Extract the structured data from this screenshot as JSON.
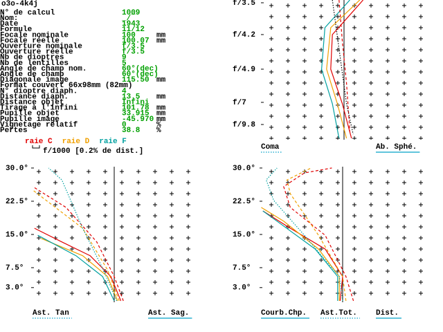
{
  "header": {
    "title": "o3o-4k4j"
  },
  "specs": [
    {
      "label": "N° de calcul",
      "value": "1009"
    },
    {
      "label": "Nom:",
      "value": "_/‾"
    },
    {
      "label": "Date",
      "value": "1943"
    },
    {
      "label": "Formule",
      "value": "11/12"
    },
    {
      "label": "Focale nominale",
      "value": "100",
      "unit": "mm"
    },
    {
      "label": "Focale réelle",
      "value": "100.07",
      "unit": "mm"
    },
    {
      "label": "Ouverture nominale",
      "value": "f/3.5"
    },
    {
      "label": "Ouverture réelle",
      "value": "f/3.5"
    },
    {
      "label": "Nb de dioptres",
      "value": "9"
    },
    {
      "label": "Nb de lentilles",
      "value": "5"
    },
    {
      "label": "Angle de champ nom.",
      "value": "60°(dec)"
    },
    {
      "label": "Angle de champ",
      "value": "60°(dec)"
    },
    {
      "label": "Diagonale image",
      "value": "115.50",
      "unit": "mm"
    },
    {
      "label": "Format couvert 66x98mm (82mm)"
    },
    {
      "label": "N° dioptre diaph.",
      "value": "4"
    },
    {
      "label": "Distance diaph.",
      "value": "13.5",
      "unit": "mm"
    },
    {
      "label": "Distance objet",
      "value": "Infini"
    },
    {
      "label": "Tirage à l'infini",
      "value": "101.78",
      "unit": "mm"
    },
    {
      "label": "Pupille objet",
      "value": "33.915",
      "unit": "mm"
    },
    {
      "label": "Pupille image",
      "value": "-45.970",
      "unit": "mm"
    },
    {
      "label": "Vignetage relatif",
      "value": "0",
      "unit": "%"
    },
    {
      "label": "Pertes",
      "value": "38.8",
      "unit": "%"
    }
  ],
  "legend": {
    "lines": [
      {
        "name": "raie C",
        "color": "#e00000"
      },
      {
        "name": "raie D",
        "color": "#f0a000"
      },
      {
        "name": "raie F",
        "color": "#00a0a0"
      }
    ],
    "scale_note": "f/1000 [0.2% de dist.]"
  },
  "panels": [
    {
      "type": "line",
      "labels": [
        {
          "text": "Coma",
          "underline": "dotted"
        },
        {
          "text": "Ab. Sphé.",
          "underline": "solid"
        }
      ],
      "xlim": [
        -1,
        1
      ],
      "ylim": [
        0,
        1
      ],
      "yticks": [
        {
          "value": 0.98,
          "label": "f/3.5"
        },
        {
          "value": 0.75,
          "label": "f/4.2"
        },
        {
          "value": 0.5,
          "label": "f/4.9"
        },
        {
          "value": 0.26,
          "label": "f/7"
        },
        {
          "value": 0.1,
          "label": "f/9.8"
        }
      ],
      "series": [
        {
          "color": "#e00000",
          "style": "solid",
          "x": [
            0.23,
            -0.14,
            -0.16,
            -0.02,
            0.09
          ],
          "y": [
            1,
            0.75,
            0.5,
            0.25,
            0
          ]
        },
        {
          "color": "#f0a000",
          "style": "solid",
          "x": [
            0.19,
            -0.16,
            -0.21,
            -0.08,
            0.03
          ],
          "y": [
            1,
            0.8,
            0.5,
            0.25,
            0
          ]
        },
        {
          "color": "#00a0a0",
          "style": "solid",
          "x": [
            0.07,
            -0.23,
            -0.27,
            -0.14,
            -0.06
          ],
          "y": [
            1,
            0.8,
            0.5,
            0.25,
            0
          ]
        },
        {
          "color": "#e00000",
          "style": "dashed",
          "x": [
            -0.06,
            -0.02,
            0.03,
            0.07
          ],
          "y": [
            1,
            0.7,
            0.4,
            0.05
          ]
        },
        {
          "color": "#000000",
          "style": "dotted",
          "x": [
            -0.14,
            0.03,
            0.11
          ],
          "y": [
            1,
            0.25,
            0.03
          ]
        }
      ]
    },
    {
      "type": "line",
      "labels": [
        {
          "text": "Ast. Tan",
          "underline": "dotted"
        },
        {
          "text": "Ast. Sag.",
          "underline": "solid"
        }
      ],
      "xlim": [
        -1,
        1
      ],
      "ylim": [
        0,
        30.3
      ],
      "yticks": [
        {
          "value": 30.0,
          "label": "30.0°"
        },
        {
          "value": 22.5,
          "label": "22.5°"
        },
        {
          "value": 15.0,
          "label": "15.0°"
        },
        {
          "value": 7.5,
          "label": "7.5°"
        },
        {
          "value": 3.0,
          "label": "3.0°"
        }
      ],
      "series": [
        {
          "color": "#e00000",
          "style": "solid",
          "x": [
            0.08,
            -0.04,
            -0.29,
            -0.63,
            -0.96
          ],
          "y": [
            0,
            5.5,
            10.2,
            13.3,
            16.4
          ]
        },
        {
          "color": "#f0a000",
          "style": "solid",
          "x": [
            0.04,
            -0.08,
            -0.38,
            -0.88
          ],
          "y": [
            0,
            5.5,
            10.2,
            14.1
          ]
        },
        {
          "color": "#00a0a0",
          "style": "solid",
          "x": [
            0,
            -0.14,
            -0.46,
            -0.92
          ],
          "y": [
            0,
            5.5,
            10.2,
            14.8
          ]
        },
        {
          "color": "#e00000",
          "style": "dashed",
          "x": [
            0.11,
            0,
            -0.21,
            -0.58,
            -0.98
          ],
          "y": [
            0,
            5.5,
            13.3,
            21.1,
            25.8
          ]
        },
        {
          "color": "#f0a000",
          "style": "dashed",
          "x": [
            0.06,
            -0.08,
            -0.38,
            -0.98
          ],
          "y": [
            0,
            7,
            16.4,
            25
          ]
        },
        {
          "color": "#00a0a0",
          "style": "dotted",
          "x": [
            0.03,
            -0.13,
            -0.38,
            -0.63,
            -0.79
          ],
          "y": [
            0,
            7,
            16.4,
            27.3,
            30
          ]
        }
      ]
    },
    {
      "type": "line",
      "labels": [
        {
          "text": "Courb.Chp.",
          "underline": "solid"
        },
        {
          "text": "Ast.Tot.",
          "underline": "dotted"
        },
        {
          "text": "Dist.",
          "underline": "solid"
        }
      ],
      "xlim": [
        -1,
        1
      ],
      "ylim": [
        0,
        30.3
      ],
      "yticks": [
        {
          "value": 30.0,
          "label": "30.0°"
        },
        {
          "value": 22.5,
          "label": "22.5°"
        },
        {
          "value": 15.0,
          "label": "15.0°"
        },
        {
          "value": 7.5,
          "label": "7.5°"
        },
        {
          "value": 3.0,
          "label": "3.0°"
        }
      ],
      "series": [
        {
          "color": "#e00000",
          "style": "solid",
          "x": [
            -0.03,
            0,
            -0.21,
            -0.63,
            -0.96
          ],
          "y": [
            0,
            5.5,
            11.7,
            16.4,
            20.3
          ]
        },
        {
          "color": "#f0a000",
          "style": "solid",
          "x": [
            -0.04,
            -0.04,
            -0.29,
            -0.71,
            -0.98
          ],
          "y": [
            0,
            5.5,
            11.7,
            18,
            21.1
          ]
        },
        {
          "color": "#00a0a0",
          "style": "solid",
          "x": [
            -0.06,
            -0.06,
            -0.33,
            -0.79,
            -0.96
          ],
          "y": [
            0,
            5.5,
            11.7,
            18,
            20.3
          ]
        },
        {
          "color": "#e00000",
          "style": "dashed",
          "x": [
            0.13,
            0.04,
            -0.21,
            -0.63,
            -0.71,
            -0.46,
            -0.13
          ],
          "y": [
            0,
            5.5,
            14.8,
            21.1,
            25.8,
            28.9,
            30
          ]
        },
        {
          "color": "#f0a000",
          "style": "dashed",
          "x": [
            0.04,
            0,
            -0.29,
            -0.63,
            -0.67,
            -0.38
          ],
          "y": [
            0,
            5.5,
            14.8,
            24.2,
            27.3,
            30
          ]
        },
        {
          "color": "#00a0a0",
          "style": "dotted",
          "x": [
            0,
            -0.04,
            -0.46,
            -0.83,
            -0.92,
            -0.79
          ],
          "y": [
            0,
            5.5,
            14.8,
            22.7,
            27.3,
            30
          ]
        }
      ]
    }
  ]
}
